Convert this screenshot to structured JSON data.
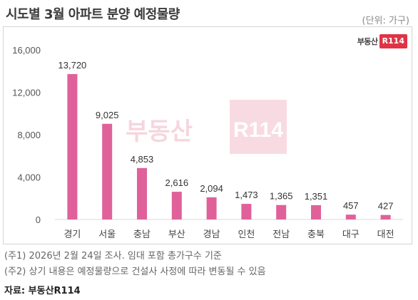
{
  "header": {
    "title": "시도별 3월 아파트 분양 예정물량",
    "unit": "(단위: 가구)"
  },
  "logo": {
    "text": "부동산",
    "badge": "R114"
  },
  "watermark": "부동산R114",
  "chart_data": {
    "type": "bar",
    "categories": [
      "경기",
      "서울",
      "충남",
      "부산",
      "경남",
      "인천",
      "전남",
      "충북",
      "대구",
      "대전"
    ],
    "values": [
      13720,
      9025,
      4853,
      2616,
      2094,
      1473,
      1365,
      1351,
      457,
      427
    ],
    "value_labels": [
      "13,720",
      "9,025",
      "4,853",
      "2,616",
      "2,094",
      "1,473",
      "1,365",
      "1,351",
      "457",
      "427"
    ],
    "y_ticks": [
      0,
      4000,
      8000,
      12000,
      16000
    ],
    "y_tick_labels": [
      "0",
      "4,000",
      "8,000",
      "12,000",
      "16,000"
    ],
    "ylim": [
      0,
      16000
    ],
    "title": "시도별 3월 아파트 분양 예정물량",
    "xlabel": "",
    "ylabel": "",
    "grid": false,
    "bar_color": "#e0619a"
  },
  "notes": [
    "(주1) 2026년 2월 24일 조사. 임대 포함 총가구수 기준",
    "(주2) 상기 내용은 예정물량으로 건설사 사정에 따라 변동될 수 있음"
  ],
  "source": "자료: 부동산R114"
}
